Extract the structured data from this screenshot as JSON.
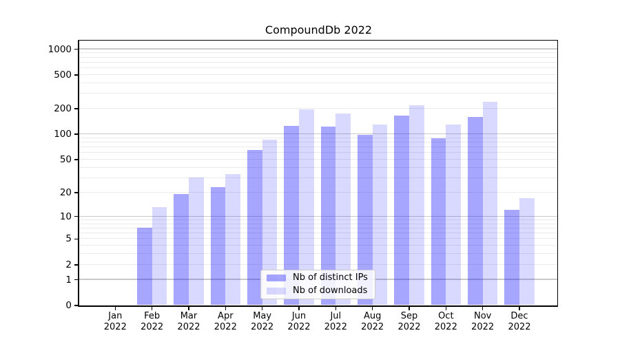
{
  "chart_data": {
    "type": "bar",
    "title": "CompoundDb 2022",
    "categories": [
      "Jan\n2022",
      "Feb\n2022",
      "Mar\n2022",
      "Apr\n2022",
      "May\n2022",
      "Jun\n2022",
      "Jul\n2022",
      "Aug\n2022",
      "Sep\n2022",
      "Oct\n2022",
      "Nov\n2022",
      "Dec\n2022"
    ],
    "series": [
      {
        "name": "Nb of distinct IPs",
        "color": "rgba(0,0,255,0.35)",
        "values": [
          0,
          7,
          19,
          23,
          64,
          125,
          123,
          98,
          165,
          88,
          158,
          12
        ]
      },
      {
        "name": "Nb of downloads",
        "color": "rgba(0,0,255,0.15)",
        "values": [
          0,
          13,
          30,
          33,
          85,
          196,
          173,
          128,
          216,
          128,
          238,
          17
        ]
      }
    ],
    "xlabel": "",
    "ylabel": "",
    "yscale": "log1p",
    "ylim": [
      0,
      1250
    ],
    "y_ticks": [
      0,
      1,
      2,
      5,
      10,
      20,
      50,
      100,
      200,
      500,
      1000
    ],
    "y_tick_labels": [
      "0",
      "1",
      "2",
      "5",
      "10",
      "20",
      "50",
      "100",
      "200",
      "500",
      "1000"
    ],
    "grid": {
      "major_values": [
        1,
        10,
        100,
        1000
      ],
      "minor_values": [
        2,
        3,
        4,
        5,
        6,
        7,
        8,
        9,
        20,
        30,
        40,
        50,
        60,
        70,
        80,
        90,
        200,
        300,
        400,
        500,
        600,
        700,
        800,
        900
      ],
      "major_color": "#c9c9c9",
      "minor_color": "#eaeaea"
    },
    "legend": {
      "position": "lower center",
      "entries": [
        "Nb of distinct IPs",
        "Nb of downloads"
      ]
    },
    "colors": {
      "bar_dark_approx": "#a6a6ff",
      "bar_light_approx": "#d9d9ff",
      "axis": "#000000",
      "background": "#ffffff"
    }
  }
}
